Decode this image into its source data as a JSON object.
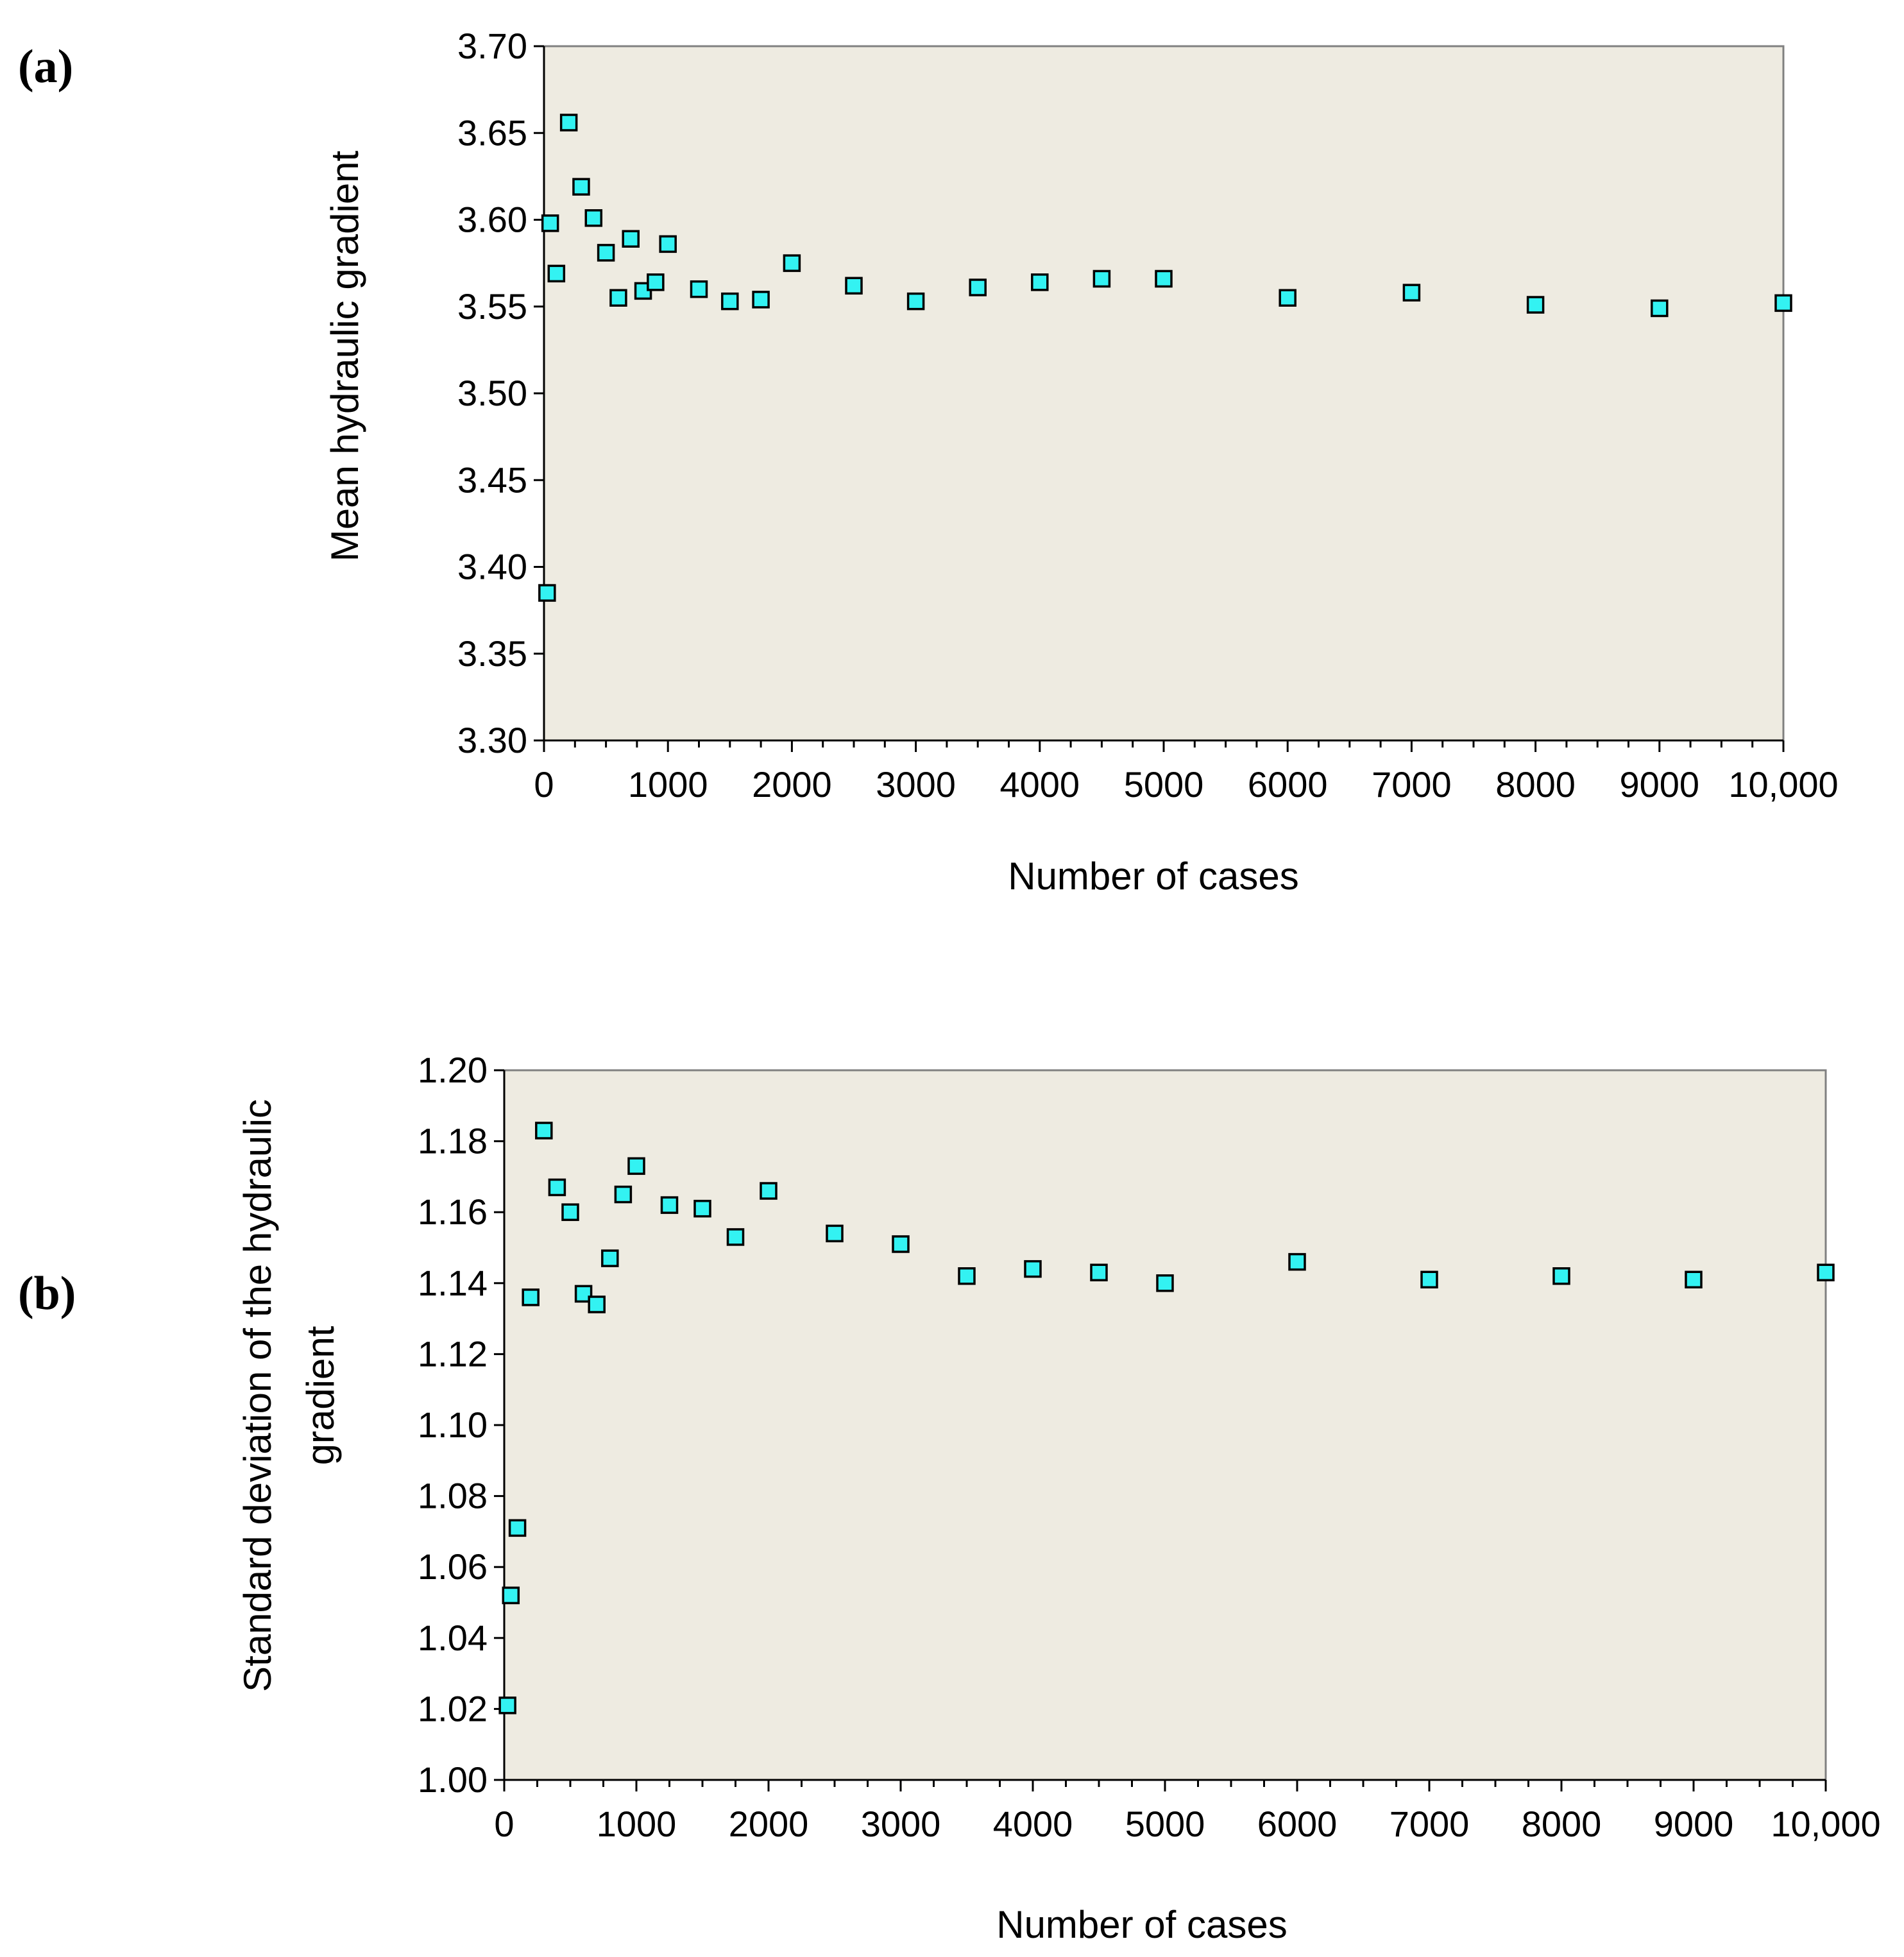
{
  "chart_data": [
    {
      "type": "scatter",
      "panel_label": "(a)",
      "xlabel": "Number of cases",
      "ylabel": "Mean hydraulic gradient",
      "xlim": [
        0,
        10000
      ],
      "ylim": [
        3.3,
        3.7
      ],
      "x_ticks": [
        0,
        1000,
        2000,
        3000,
        4000,
        5000,
        6000,
        7000,
        8000,
        9000,
        10000
      ],
      "x_tick_labels": [
        "0",
        "1000",
        "2000",
        "3000",
        "4000",
        "5000",
        "6000",
        "7000",
        "8000",
        "9000",
        "10,000"
      ],
      "y_ticks": [
        3.3,
        3.35,
        3.4,
        3.45,
        3.5,
        3.55,
        3.6,
        3.65,
        3.7
      ],
      "y_tick_labels": [
        "3.30",
        "3.35",
        "3.40",
        "3.45",
        "3.50",
        "3.55",
        "3.60",
        "3.65",
        "3.70"
      ],
      "marker_color": "#33f2f2",
      "points": [
        {
          "x": 25,
          "y": 3.385
        },
        {
          "x": 50,
          "y": 3.598
        },
        {
          "x": 100,
          "y": 3.569
        },
        {
          "x": 200,
          "y": 3.656
        },
        {
          "x": 300,
          "y": 3.619
        },
        {
          "x": 400,
          "y": 3.601
        },
        {
          "x": 500,
          "y": 3.581
        },
        {
          "x": 600,
          "y": 3.555
        },
        {
          "x": 700,
          "y": 3.589
        },
        {
          "x": 800,
          "y": 3.559
        },
        {
          "x": 900,
          "y": 3.564
        },
        {
          "x": 1000,
          "y": 3.586
        },
        {
          "x": 1250,
          "y": 3.56
        },
        {
          "x": 1500,
          "y": 3.553
        },
        {
          "x": 1750,
          "y": 3.554
        },
        {
          "x": 2000,
          "y": 3.575
        },
        {
          "x": 2500,
          "y": 3.562
        },
        {
          "x": 3000,
          "y": 3.553
        },
        {
          "x": 3500,
          "y": 3.561
        },
        {
          "x": 4000,
          "y": 3.564
        },
        {
          "x": 4500,
          "y": 3.566
        },
        {
          "x": 5000,
          "y": 3.566
        },
        {
          "x": 6000,
          "y": 3.555
        },
        {
          "x": 7000,
          "y": 3.558
        },
        {
          "x": 8000,
          "y": 3.551
        },
        {
          "x": 9000,
          "y": 3.549
        },
        {
          "x": 10000,
          "y": 3.552
        }
      ]
    },
    {
      "type": "scatter",
      "panel_label": "(b)",
      "xlabel": "Number of cases",
      "ylabel_lines": [
        "Standard deviation of the hydraulic",
        "gradient"
      ],
      "xlim": [
        0,
        10000
      ],
      "ylim": [
        1.0,
        1.2
      ],
      "x_ticks": [
        0,
        1000,
        2000,
        3000,
        4000,
        5000,
        6000,
        7000,
        8000,
        9000,
        10000
      ],
      "x_tick_labels": [
        "0",
        "1000",
        "2000",
        "3000",
        "4000",
        "5000",
        "6000",
        "7000",
        "8000",
        "9000",
        "10,000"
      ],
      "y_ticks": [
        1.0,
        1.02,
        1.04,
        1.06,
        1.08,
        1.1,
        1.12,
        1.14,
        1.16,
        1.18,
        1.2
      ],
      "y_tick_labels": [
        "1.00",
        "1.02",
        "1.04",
        "1.06",
        "1.08",
        "1.10",
        "1.12",
        "1.14",
        "1.16",
        "1.18",
        "1.20"
      ],
      "marker_color": "#33f2f2",
      "points": [
        {
          "x": 25,
          "y": 1.021
        },
        {
          "x": 50,
          "y": 1.052
        },
        {
          "x": 100,
          "y": 1.071
        },
        {
          "x": 200,
          "y": 1.136
        },
        {
          "x": 300,
          "y": 1.183
        },
        {
          "x": 400,
          "y": 1.167
        },
        {
          "x": 500,
          "y": 1.16
        },
        {
          "x": 600,
          "y": 1.137
        },
        {
          "x": 700,
          "y": 1.134
        },
        {
          "x": 800,
          "y": 1.147
        },
        {
          "x": 900,
          "y": 1.165
        },
        {
          "x": 1000,
          "y": 1.173
        },
        {
          "x": 1250,
          "y": 1.162
        },
        {
          "x": 1500,
          "y": 1.161
        },
        {
          "x": 1750,
          "y": 1.153
        },
        {
          "x": 2000,
          "y": 1.166
        },
        {
          "x": 2500,
          "y": 1.154
        },
        {
          "x": 3000,
          "y": 1.151
        },
        {
          "x": 3500,
          "y": 1.142
        },
        {
          "x": 4000,
          "y": 1.144
        },
        {
          "x": 4500,
          "y": 1.143
        },
        {
          "x": 5000,
          "y": 1.14
        },
        {
          "x": 6000,
          "y": 1.146
        },
        {
          "x": 7000,
          "y": 1.141
        },
        {
          "x": 8000,
          "y": 1.142
        },
        {
          "x": 9000,
          "y": 1.141
        },
        {
          "x": 10000,
          "y": 1.143
        }
      ]
    }
  ]
}
